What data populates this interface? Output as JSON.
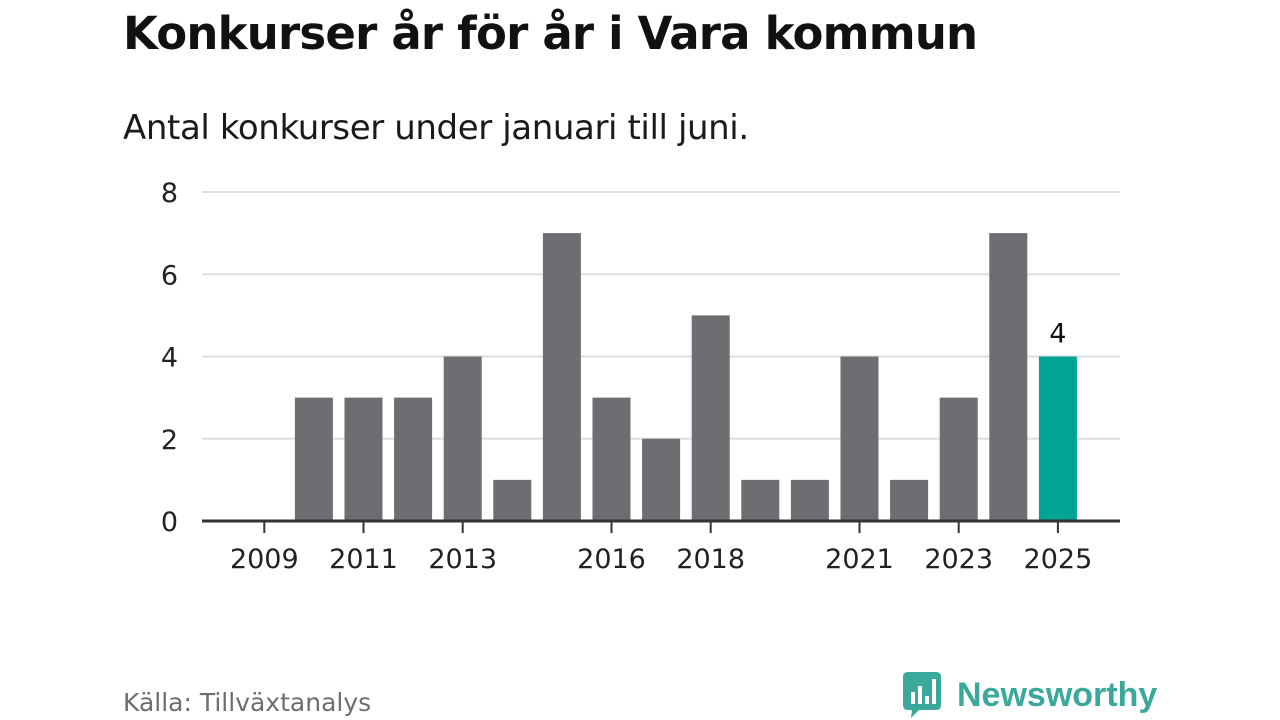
{
  "title": "Konkurser år för år i Vara kommun",
  "subtitle": "Antal konkurser under januari till juni.",
  "source": "Källa: Tillväxtanalys",
  "brand": {
    "name": "Newsworthy",
    "icon": "newsworthy-bar-chart-icon",
    "color": "#3aa99b"
  },
  "colors": {
    "bar": "#6e6d72",
    "highlight": "#00a495",
    "grid": "#dedede",
    "axis": "#333333"
  },
  "chart_data": {
    "type": "bar",
    "categories": [
      "2009",
      "2010",
      "2011",
      "2012",
      "2013",
      "2014",
      "2015",
      "2016",
      "2017",
      "2018",
      "2019",
      "2020",
      "2021",
      "2022",
      "2023",
      "2024",
      "2025"
    ],
    "values": [
      0,
      3,
      3,
      3,
      4,
      1,
      7,
      3,
      2,
      5,
      1,
      1,
      4,
      1,
      3,
      7,
      4
    ],
    "highlight_category": "2025",
    "data_labels": [
      {
        "category": "2025",
        "text": "4"
      }
    ],
    "x_tick_labels": [
      "2009",
      "2011",
      "2013",
      "2016",
      "2018",
      "2021",
      "2023",
      "2025"
    ],
    "y_ticks": [
      0,
      2,
      4,
      6,
      8
    ],
    "ylim": [
      0,
      8
    ],
    "xlabel": "",
    "ylabel": "",
    "grid": true,
    "legend": "none"
  }
}
